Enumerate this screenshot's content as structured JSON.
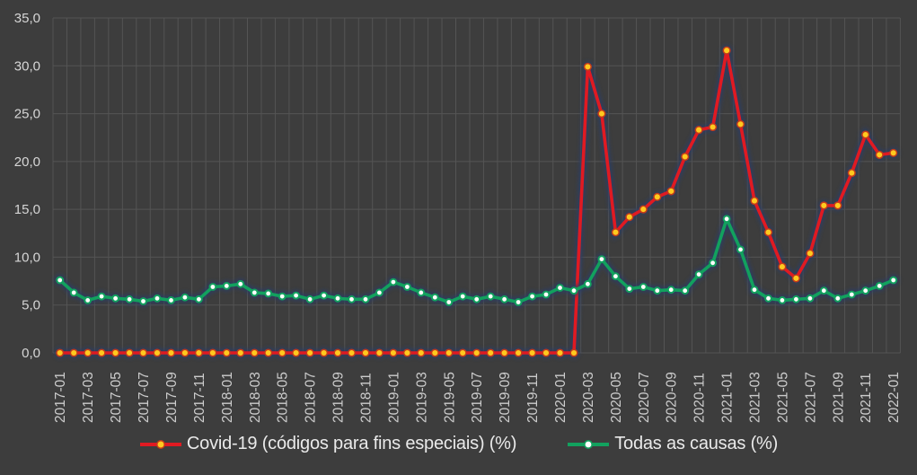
{
  "chart_data": {
    "type": "line",
    "x": [
      "2017-01",
      "2017-02",
      "2017-03",
      "2017-04",
      "2017-05",
      "2017-06",
      "2017-07",
      "2017-08",
      "2017-09",
      "2017-10",
      "2017-11",
      "2017-12",
      "2018-01",
      "2018-02",
      "2018-03",
      "2018-04",
      "2018-05",
      "2018-06",
      "2018-07",
      "2018-08",
      "2018-09",
      "2018-10",
      "2018-11",
      "2018-12",
      "2019-01",
      "2019-02",
      "2019-03",
      "2019-04",
      "2019-05",
      "2019-06",
      "2019-07",
      "2019-08",
      "2019-09",
      "2019-10",
      "2019-11",
      "2019-12",
      "2020-01",
      "2020-02",
      "2020-03",
      "2020-04",
      "2020-05",
      "2020-06",
      "2020-07",
      "2020-08",
      "2020-09",
      "2020-10",
      "2020-11",
      "2020-12",
      "2021-01",
      "2021-02",
      "2021-03",
      "2021-04",
      "2021-05",
      "2021-06",
      "2021-07",
      "2021-08",
      "2021-09",
      "2021-10",
      "2021-11",
      "2021-12",
      "2022-01"
    ],
    "x_tick_every": 2,
    "series": [
      {
        "name": "Covid-19 (códigos para fins especiais) (%)",
        "line_color": "#e01a22",
        "marker_fill": "#ffc91f",
        "values": [
          0,
          0,
          0,
          0,
          0,
          0,
          0,
          0,
          0,
          0,
          0,
          0,
          0,
          0,
          0,
          0,
          0,
          0,
          0,
          0,
          0,
          0,
          0,
          0,
          0,
          0,
          0,
          0,
          0,
          0,
          0,
          0,
          0,
          0,
          0,
          0,
          0,
          0,
          29.9,
          25.0,
          12.6,
          14.2,
          15.0,
          16.3,
          16.9,
          20.5,
          23.3,
          23.6,
          31.6,
          23.9,
          15.9,
          12.6,
          9.0,
          7.8,
          10.4,
          15.4,
          15.4,
          18.8,
          22.8,
          20.7,
          20.9
        ]
      },
      {
        "name": "Todas as causas (%)",
        "line_color": "#12a15e",
        "marker_fill": "#ffffff",
        "values": [
          7.6,
          6.3,
          5.5,
          5.9,
          5.7,
          5.6,
          5.4,
          5.7,
          5.5,
          5.8,
          5.6,
          6.9,
          7.0,
          7.2,
          6.3,
          6.2,
          5.9,
          6.0,
          5.6,
          6.0,
          5.7,
          5.6,
          5.6,
          6.3,
          7.4,
          6.9,
          6.3,
          5.8,
          5.3,
          5.9,
          5.6,
          5.9,
          5.6,
          5.3,
          5.9,
          6.1,
          6.8,
          6.5,
          7.2,
          9.8,
          8.0,
          6.7,
          6.9,
          6.5,
          6.6,
          6.5,
          8.2,
          9.4,
          14.0,
          10.8,
          6.6,
          5.7,
          5.5,
          5.6,
          5.7,
          6.5,
          5.7,
          6.1,
          6.5,
          7.0,
          7.6
        ]
      }
    ],
    "ylim": [
      0,
      35
    ],
    "y_tick_step": 5,
    "y_tick_labels": [
      "0,0",
      "5,0",
      "10,0",
      "15,0",
      "20,0",
      "25,0",
      "30,0",
      "35,0"
    ],
    "grid": true,
    "legend_position": "bottom"
  },
  "colors": {
    "background": "#3d3d3d",
    "gridline": "#545454",
    "axis_text": "#d6d6d6",
    "x_text": "#cccccc",
    "covid_line": "#e01a22",
    "covid_marker": "#ffc91f",
    "covid_marker_ring": "#c43b1a",
    "todas_line": "#12a15e",
    "todas_marker": "#ffffff",
    "glow": "#2c3c66"
  },
  "legend": {
    "covid_label": "Covid-19 (códigos para fins especiais) (%)",
    "todas_label": "Todas as causas (%)"
  }
}
